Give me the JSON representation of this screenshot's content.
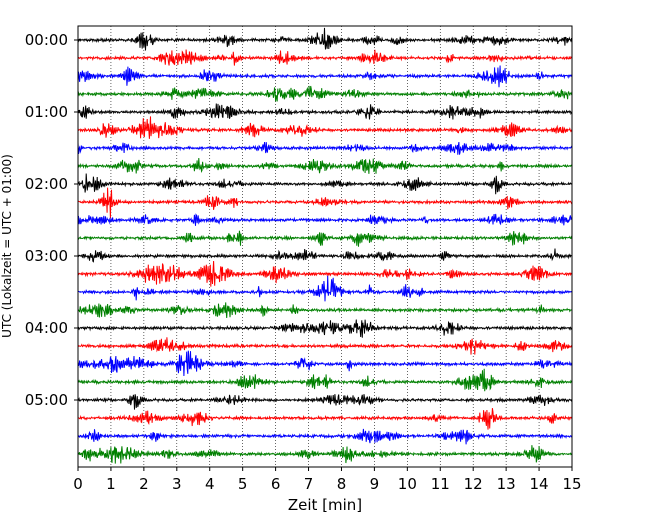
{
  "chart_data": {
    "type": "line",
    "title": "",
    "xlabel": "Zeit  [min]",
    "ylabel": "UTC (Lokalzeit = UTC + 01:00)",
    "xlim": [
      0,
      15
    ],
    "x_ticks": [
      "0",
      "1",
      "2",
      "3",
      "4",
      "5",
      "6",
      "7",
      "8",
      "9",
      "10",
      "11",
      "12",
      "13",
      "14",
      "15"
    ],
    "y_ticks": [
      "00:00",
      "01:00",
      "02:00",
      "03:00",
      "04:00",
      "05:00"
    ],
    "grid": "vertical dotted",
    "trace_minutes": 15,
    "trace_count": 24,
    "color_cycle": [
      "#000000",
      "#ff0000",
      "#0000ff",
      "#008000"
    ],
    "traces": [
      {
        "start": "00:00"
      },
      {
        "start": "00:15"
      },
      {
        "start": "00:30"
      },
      {
        "start": "00:45"
      },
      {
        "start": "01:00"
      },
      {
        "start": "01:15"
      },
      {
        "start": "01:30"
      },
      {
        "start": "01:45"
      },
      {
        "start": "02:00"
      },
      {
        "start": "02:15"
      },
      {
        "start": "02:30"
      },
      {
        "start": "02:45"
      },
      {
        "start": "03:00"
      },
      {
        "start": "03:15"
      },
      {
        "start": "03:30"
      },
      {
        "start": "03:45"
      },
      {
        "start": "04:00"
      },
      {
        "start": "04:15"
      },
      {
        "start": "04:30"
      },
      {
        "start": "04:45"
      },
      {
        "start": "05:00"
      },
      {
        "start": "05:15"
      },
      {
        "start": "05:30"
      },
      {
        "start": "05:45"
      }
    ]
  }
}
